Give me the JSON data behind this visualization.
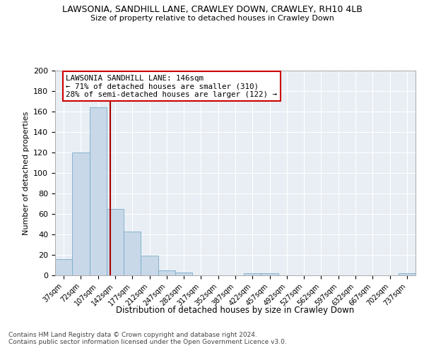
{
  "title": "LAWSONIA, SANDHILL LANE, CRAWLEY DOWN, CRAWLEY, RH10 4LB",
  "subtitle": "Size of property relative to detached houses in Crawley Down",
  "xlabel": "Distribution of detached houses by size in Crawley Down",
  "ylabel": "Number of detached properties",
  "footnote1": "Contains HM Land Registry data © Crown copyright and database right 2024.",
  "footnote2": "Contains public sector information licensed under the Open Government Licence v3.0.",
  "bar_labels": [
    "37sqm",
    "72sqm",
    "107sqm",
    "142sqm",
    "177sqm",
    "212sqm",
    "247sqm",
    "282sqm",
    "317sqm",
    "352sqm",
    "387sqm",
    "422sqm",
    "457sqm",
    "492sqm",
    "527sqm",
    "562sqm",
    "597sqm",
    "632sqm",
    "667sqm",
    "702sqm",
    "737sqm"
  ],
  "bar_values": [
    16,
    120,
    164,
    65,
    43,
    19,
    5,
    3,
    0,
    0,
    0,
    2,
    2,
    0,
    0,
    0,
    0,
    0,
    0,
    0,
    2
  ],
  "bar_color": "#c8d8e8",
  "bar_edge_color": "#7aaac8",
  "annotation_title": "LAWSONIA SANDHILL LANE: 146sqm",
  "annotation_line1": "← 71% of detached houses are smaller (310)",
  "annotation_line2": "28% of semi-detached houses are larger (122) →",
  "annotation_box_color": "#ffffff",
  "annotation_box_edge_color": "#cc0000",
  "marker_color": "#aa0000",
  "ylim": [
    0,
    200
  ],
  "yticks": [
    0,
    20,
    40,
    60,
    80,
    100,
    120,
    140,
    160,
    180,
    200
  ],
  "property_bar_index": 2.72,
  "background_color": "#ffffff",
  "plot_bg_color": "#e8eef4",
  "grid_color": "#ffffff"
}
